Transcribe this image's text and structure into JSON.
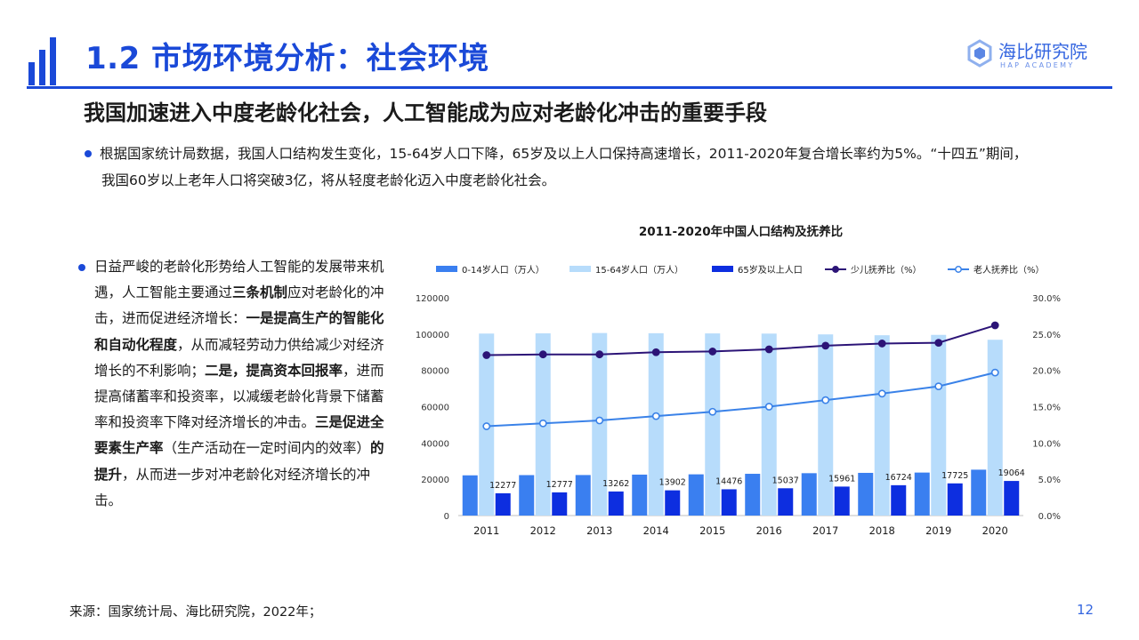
{
  "header": {
    "title": "1.2 市场环境分析：社会环境",
    "logo_name": "海比研究院",
    "logo_sub": "HAP ACADEMY"
  },
  "subtitle": "我国加速进入中度老龄化社会，人工智能成为应对老龄化冲击的重要手段",
  "bullet1": {
    "line1": "根据国家统计局数据，我国人口结构发生变化，15-64岁人口下降，65岁及以上人口保持高速增长，2011-2020年复合增长率约为5%。“十四五”期间，",
    "line2": "我国60岁以上老年人口将突破3亿，将从轻度老龄化迈入中度老龄化社会。"
  },
  "bullet2": {
    "t1": "日益严峻的老龄化形势给人工智能的发展带来机遇，人工智能主要通过",
    "t2": "三条机制",
    "t3": "应对老龄化的冲击，进而促进经济增长：",
    "t4": "一是提高生产的智能化和自动化程度",
    "t5": "，从而减轻劳动力供给减少对经济增长的不利影响；",
    "t6": "二是，提高资本回报率",
    "t7": "，进而提高储蓄率和投资率，以减缓老龄化背景下储蓄率和投资率下降对经济增长的冲击。",
    "t8": "三是促进全要素生产率",
    "t9": "（生产活动在一定时间内的效率）",
    "t10": "的提升",
    "t11": "，从而进一步对冲老龄化对经济增长的冲击。"
  },
  "footer": {
    "source": "来源：国家统计局、海比研究院，2022年；",
    "page": "12"
  },
  "chart_data": {
    "type": "bar",
    "title": "2011-2020年中国人口结构及抚养比",
    "categories": [
      "2011",
      "2012",
      "2013",
      "2014",
      "2015",
      "2016",
      "2017",
      "2018",
      "2019",
      "2020"
    ],
    "series": [
      {
        "name": "0-14岁人口（万人）",
        "type": "bar",
        "axis": "left",
        "color": "#3a7ff0",
        "values": [
          22164,
          22287,
          22329,
          22558,
          22715,
          23008,
          23348,
          23523,
          23689,
          25277
        ]
      },
      {
        "name": "15-64岁人口（万人）",
        "type": "bar",
        "axis": "left",
        "color": "#b7dcfb",
        "values": [
          100283,
          100403,
          100582,
          100469,
          100361,
          100260,
          99829,
          99357,
          99552,
          96871
        ]
      },
      {
        "name": "65岁及以上人口",
        "type": "bar",
        "axis": "left",
        "color": "#0d2ee0",
        "values": [
          12277,
          12777,
          13262,
          13902,
          14476,
          15037,
          15961,
          16724,
          17725,
          19064
        ]
      },
      {
        "name": "少儿抚养比（%）",
        "type": "line",
        "axis": "right",
        "color": "#2c1477",
        "values": [
          22.1,
          22.2,
          22.2,
          22.5,
          22.6,
          22.9,
          23.4,
          23.7,
          23.8,
          26.2
        ]
      },
      {
        "name": "老人抚养比（%）",
        "type": "line",
        "axis": "right",
        "color": "#3a82e8",
        "values": [
          12.3,
          12.7,
          13.1,
          13.7,
          14.3,
          15.0,
          15.9,
          16.8,
          17.8,
          19.7
        ]
      }
    ],
    "data_labels": [
      "12277",
      "12777",
      "13262",
      "13902",
      "14476",
      "15037",
      "15961",
      "16724",
      "17725",
      "19064"
    ],
    "y_left": {
      "min": 0,
      "max": 120000,
      "ticks": [
        "0",
        "20000",
        "40000",
        "60000",
        "80000",
        "100000",
        "120000"
      ]
    },
    "y_right": {
      "min": 0,
      "max": 30,
      "ticks": [
        "0.0%",
        "5.0%",
        "10.0%",
        "15.0%",
        "20.0%",
        "25.0%",
        "30.0%"
      ]
    },
    "legend_position": "top",
    "grid": false
  }
}
